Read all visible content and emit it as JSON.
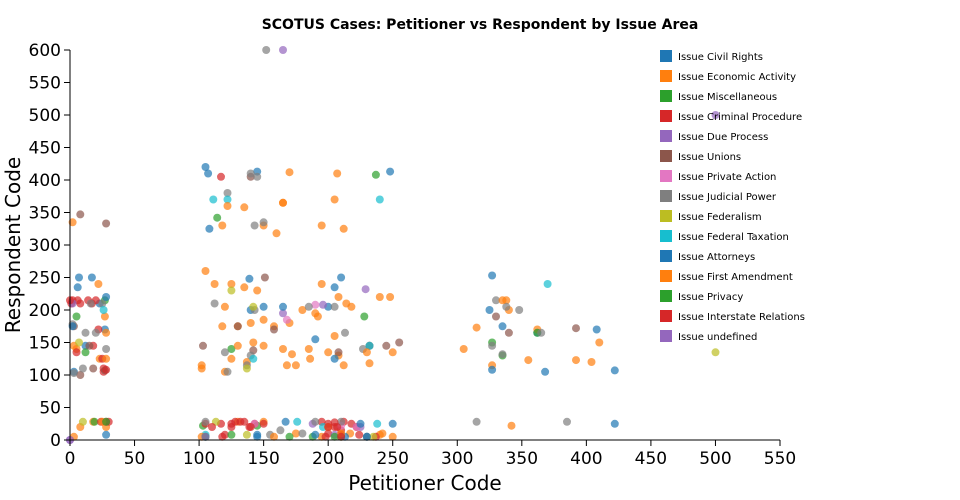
{
  "chart_data": {
    "type": "scatter",
    "title": "SCOTUS Cases: Petitioner vs Respondent by Issue Area",
    "xlabel": "Petitioner Code",
    "ylabel": "Respondent Code",
    "xlim": [
      0,
      550
    ],
    "ylim": [
      0,
      600
    ],
    "xticks": [
      0,
      50,
      100,
      150,
      200,
      250,
      300,
      350,
      400,
      450,
      500,
      550
    ],
    "yticks": [
      0,
      50,
      100,
      150,
      200,
      250,
      300,
      350,
      400,
      450,
      500,
      550,
      600
    ],
    "legend_position": "top-right",
    "series": [
      {
        "name": "Issue Civil Rights",
        "color": "#1f77b4",
        "points": [
          [
            7,
            250
          ],
          [
            17,
            250
          ],
          [
            105,
            420
          ],
          [
            108,
            325
          ],
          [
            145,
            413
          ],
          [
            210,
            250
          ],
          [
            248,
            413
          ],
          [
            327,
            253
          ],
          [
            23,
            210
          ],
          [
            200,
            205
          ],
          [
            3,
            105
          ],
          [
            27,
            170
          ],
          [
            190,
            155
          ],
          [
            335,
            175
          ],
          [
            12,
            145
          ],
          [
            105,
            5
          ],
          [
            145,
            8
          ],
          [
            230,
            5
          ],
          [
            250,
            25
          ],
          [
            362,
            165
          ],
          [
            368,
            105
          ],
          [
            408,
            170
          ],
          [
            422,
            107
          ],
          [
            422,
            25
          ],
          [
            6,
            235
          ],
          [
            140,
            200
          ],
          [
            325,
            200
          ]
        ]
      },
      {
        "name": "Issue Economic Activity",
        "color": "#ff7f0e",
        "points": [
          [
            2,
            335
          ],
          [
            22,
            240
          ],
          [
            105,
            260
          ],
          [
            112,
            240
          ],
          [
            125,
            240
          ],
          [
            118,
            330
          ],
          [
            135,
            358
          ],
          [
            150,
            330
          ],
          [
            160,
            318
          ],
          [
            165,
            365
          ],
          [
            170,
            412
          ],
          [
            195,
            330
          ],
          [
            207,
            410
          ],
          [
            205,
            370
          ],
          [
            212,
            325
          ],
          [
            240,
            220
          ],
          [
            248,
            220
          ],
          [
            195,
            240
          ],
          [
            208,
            220
          ],
          [
            180,
            200
          ],
          [
            190,
            195
          ],
          [
            214,
            210
          ],
          [
            305,
            140
          ],
          [
            315,
            173
          ],
          [
            327,
            115
          ],
          [
            338,
            215
          ],
          [
            340,
            200
          ],
          [
            355,
            123
          ],
          [
            362,
            170
          ],
          [
            392,
            123
          ],
          [
            404,
            120
          ],
          [
            410,
            150
          ],
          [
            118,
            175
          ],
          [
            130,
            175
          ],
          [
            140,
            180
          ],
          [
            150,
            185
          ],
          [
            158,
            175
          ],
          [
            165,
            140
          ],
          [
            172,
            132
          ],
          [
            185,
            140
          ],
          [
            200,
            135
          ],
          [
            212,
            115
          ],
          [
            232,
            118
          ],
          [
            23,
            125
          ],
          [
            27,
            190
          ],
          [
            3,
            145
          ],
          [
            8,
            20
          ],
          [
            18,
            28
          ],
          [
            28,
            20
          ],
          [
            5,
            140
          ],
          [
            102,
            115
          ],
          [
            120,
            105
          ],
          [
            137,
            120
          ],
          [
            142,
            150
          ],
          [
            170,
            180
          ],
          [
            186,
            125
          ],
          [
            208,
            130
          ],
          [
            130,
            28
          ],
          [
            150,
            28
          ],
          [
            175,
            10
          ],
          [
            195,
            5
          ],
          [
            217,
            10
          ],
          [
            240,
            8
          ],
          [
            250,
            5
          ],
          [
            342,
            22
          ]
        ]
      },
      {
        "name": "Issue Miscellaneous",
        "color": "#2ca02c",
        "points": [
          [
            5,
            190
          ],
          [
            27,
            215
          ],
          [
            12,
            135
          ],
          [
            19,
            28
          ],
          [
            125,
            140
          ],
          [
            188,
            5
          ],
          [
            210,
            5
          ],
          [
            228,
            190
          ],
          [
            327,
            150
          ],
          [
            335,
            130
          ],
          [
            362,
            165
          ],
          [
            237,
            408
          ],
          [
            114,
            342
          ],
          [
            103,
            22
          ],
          [
            145,
            22
          ],
          [
            170,
            5
          ]
        ]
      },
      {
        "name": "Issue Criminal Procedure",
        "color": "#d62728",
        "points": [
          [
            2,
            215
          ],
          [
            6,
            215
          ],
          [
            14,
            215
          ],
          [
            28,
            28
          ],
          [
            26,
            105
          ],
          [
            26,
            110
          ],
          [
            5,
            135
          ],
          [
            17,
            210
          ],
          [
            105,
            25
          ],
          [
            117,
            25
          ],
          [
            128,
            28
          ],
          [
            143,
            25
          ],
          [
            150,
            25
          ],
          [
            195,
            28
          ],
          [
            200,
            25
          ],
          [
            205,
            20
          ],
          [
            210,
            8
          ],
          [
            212,
            28
          ],
          [
            222,
            20
          ],
          [
            224,
            8
          ],
          [
            237,
            5
          ],
          [
            24,
            28
          ],
          [
            22,
            170
          ],
          [
            18,
            145
          ],
          [
            120,
            8
          ],
          [
            132,
            28
          ],
          [
            139,
            20
          ],
          [
            117,
            405
          ],
          [
            210,
            15
          ],
          [
            1,
            210
          ],
          [
            8,
            210
          ],
          [
            20,
            215
          ],
          [
            25,
            125
          ],
          [
            30,
            28
          ],
          [
            118,
            5
          ],
          [
            125,
            20
          ],
          [
            200,
            10
          ],
          [
            218,
            25
          ]
        ]
      },
      {
        "name": "Issue Due Process",
        "color": "#9467bd",
        "points": [
          [
            165,
            600
          ],
          [
            500,
            500
          ],
          [
            196,
            208
          ],
          [
            229,
            232
          ],
          [
            188,
            25
          ],
          [
            205,
            8
          ],
          [
            0,
            0
          ],
          [
            2,
            210
          ],
          [
            165,
            195
          ],
          [
            225,
            20
          ]
        ]
      },
      {
        "name": "Issue Unions",
        "color": "#8c564b",
        "points": [
          [
            28,
            333
          ],
          [
            8,
            347
          ],
          [
            140,
            405
          ],
          [
            151,
            250
          ],
          [
            103,
            145
          ],
          [
            130,
            175
          ],
          [
            142,
            138
          ],
          [
            158,
            170
          ],
          [
            208,
            135
          ],
          [
            232,
            145
          ],
          [
            245,
            145
          ],
          [
            255,
            150
          ],
          [
            330,
            190
          ],
          [
            340,
            165
          ],
          [
            392,
            172
          ],
          [
            3,
            175
          ],
          [
            15,
            145
          ],
          [
            27,
            107
          ],
          [
            8,
            100
          ],
          [
            18,
            110
          ]
        ]
      },
      {
        "name": "Issue Private Action",
        "color": "#e377c2",
        "points": [
          [
            168,
            185
          ],
          [
            190,
            208
          ],
          [
            210,
            22
          ],
          [
            222,
            20
          ],
          [
            143,
            25
          ]
        ]
      },
      {
        "name": "Issue Judicial Power",
        "color": "#7f7f7f",
        "points": [
          [
            152,
            600
          ],
          [
            122,
            380
          ],
          [
            140,
            410
          ],
          [
            145,
            405
          ],
          [
            143,
            330
          ],
          [
            150,
            335
          ],
          [
            112,
            210
          ],
          [
            143,
            200
          ],
          [
            185,
            205
          ],
          [
            205,
            205
          ],
          [
            213,
            165
          ],
          [
            232,
            145
          ],
          [
            227,
            140
          ],
          [
            327,
            145
          ],
          [
            330,
            215
          ],
          [
            338,
            205
          ],
          [
            335,
            132
          ],
          [
            348,
            200
          ],
          [
            365,
            165
          ],
          [
            385,
            28
          ],
          [
            315,
            28
          ],
          [
            210,
            28
          ],
          [
            230,
            5
          ],
          [
            190,
            28
          ],
          [
            155,
            8
          ],
          [
            163,
            15
          ],
          [
            180,
            10
          ],
          [
            120,
            135
          ],
          [
            140,
            130
          ],
          [
            105,
            28
          ],
          [
            25,
            210
          ],
          [
            16,
            210
          ],
          [
            28,
            140
          ],
          [
            12,
            165
          ],
          [
            10,
            110
          ],
          [
            3,
            103
          ],
          [
            2,
            178
          ],
          [
            20,
            165
          ],
          [
            137,
            115
          ],
          [
            122,
            105
          ]
        ]
      },
      {
        "name": "Issue Federalism",
        "color": "#bcbd22",
        "points": [
          [
            500,
            135
          ],
          [
            142,
            205
          ],
          [
            125,
            230
          ],
          [
            113,
            28
          ],
          [
            137,
            8
          ],
          [
            235,
            5
          ],
          [
            10,
            28
          ],
          [
            7,
            150
          ],
          [
            137,
            110
          ]
        ]
      },
      {
        "name": "Issue Federal Taxation",
        "color": "#17becf",
        "points": [
          [
            111,
            370
          ],
          [
            122,
            370
          ],
          [
            240,
            370
          ],
          [
            370,
            240
          ],
          [
            105,
            8
          ],
          [
            176,
            28
          ],
          [
            196,
            20
          ],
          [
            238,
            25
          ],
          [
            232,
            145
          ],
          [
            26,
            200
          ],
          [
            142,
            125
          ]
        ]
      },
      {
        "name": "Issue Attorneys",
        "color": "#1f77b4",
        "points": [
          [
            2,
            175
          ],
          [
            28,
            220
          ],
          [
            150,
            205
          ],
          [
            165,
            205
          ],
          [
            205,
            235
          ],
          [
            205,
            125
          ],
          [
            327,
            108
          ],
          [
            28,
            8
          ],
          [
            107,
            410
          ],
          [
            139,
            248
          ],
          [
            167,
            28
          ],
          [
            145,
            5
          ],
          [
            190,
            8
          ],
          [
            225,
            25
          ],
          [
            213,
            5
          ],
          [
            230,
            5
          ]
        ]
      },
      {
        "name": "Issue First Amendment",
        "color": "#ff7f0e",
        "points": [
          [
            25,
            28
          ],
          [
            3,
            5
          ],
          [
            28,
            125
          ],
          [
            28,
            165
          ],
          [
            102,
            110
          ],
          [
            125,
            125
          ],
          [
            135,
            235
          ],
          [
            145,
            230
          ],
          [
            130,
            145
          ],
          [
            120,
            205
          ],
          [
            150,
            145
          ],
          [
            168,
            115
          ],
          [
            175,
            115
          ],
          [
            205,
            160
          ],
          [
            218,
            205
          ],
          [
            250,
            135
          ],
          [
            230,
            135
          ],
          [
            192,
            190
          ],
          [
            165,
            365
          ],
          [
            122,
            360
          ],
          [
            335,
            215
          ],
          [
            210,
            10
          ],
          [
            242,
            10
          ],
          [
            200,
            20
          ],
          [
            158,
            5
          ],
          [
            102,
            5
          ]
        ]
      },
      {
        "name": "Issue Privacy",
        "color": "#2ca02c",
        "points": [
          [
            28,
            28
          ],
          [
            105,
            5
          ],
          [
            205,
            5
          ],
          [
            125,
            8
          ]
        ]
      },
      {
        "name": "Issue Interstate Relations",
        "color": "#d62728",
        "points": [
          [
            0,
            215
          ],
          [
            110,
            20
          ],
          [
            125,
            25
          ],
          [
            200,
            20
          ],
          [
            205,
            27
          ],
          [
            28,
            108
          ],
          [
            135,
            28
          ],
          [
            210,
            5
          ],
          [
            140,
            20
          ],
          [
            207,
            20
          ],
          [
            198,
            5
          ]
        ]
      },
      {
        "name": "Issue undefined",
        "color": "#9467bd",
        "points": [
          [
            105,
            5
          ],
          [
            0,
            0
          ]
        ]
      }
    ]
  }
}
